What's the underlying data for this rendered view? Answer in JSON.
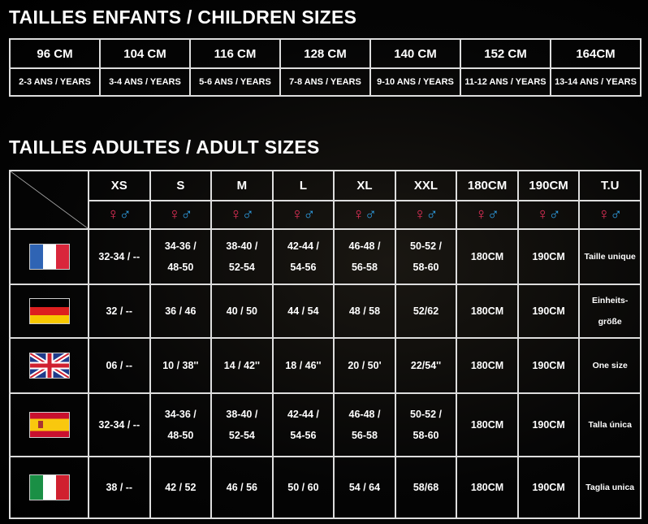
{
  "children": {
    "title": "TAILLES ENFANTS / CHILDREN SIZES",
    "sizes": [
      "96 CM",
      "104 CM",
      "116 CM",
      "128 CM",
      "140 CM",
      "152 CM",
      "164CM"
    ],
    "ages": [
      "2-3 ANS / YEARS",
      "3-4 ANS / YEARS",
      "5-6 ANS / YEARS",
      "7-8 ANS / YEARS",
      "9-10 ANS / YEARS",
      "11-12 ANS / YEARS",
      "13-14 ANS / YEARS"
    ]
  },
  "adults": {
    "title": "TAILLES ADULTES / ADULT SIZES",
    "headers": [
      "XS",
      "S",
      "M",
      "L",
      "XL",
      "XXL",
      "180CM",
      "190CM",
      "T.U"
    ],
    "symbols": {
      "female": "♀",
      "male": "♂"
    },
    "colors": {
      "female": "#e8315a",
      "male": "#2fa0e6"
    },
    "rows": [
      {
        "flag": "france-flag",
        "cells": [
          [
            "32-34 / --"
          ],
          [
            "34-36 /",
            "48-50"
          ],
          [
            "38-40 /",
            "52-54"
          ],
          [
            "42-44 /",
            "54-56"
          ],
          [
            "46-48 /",
            "56-58"
          ],
          [
            "50-52 /",
            "58-60"
          ],
          [
            "180CM"
          ],
          [
            "190CM"
          ],
          [
            "Taille unique"
          ]
        ]
      },
      {
        "flag": "germany-flag",
        "cells": [
          [
            "32 / --"
          ],
          [
            "36 / 46"
          ],
          [
            "40 / 50"
          ],
          [
            "44 / 54"
          ],
          [
            "48 / 58"
          ],
          [
            "52/62"
          ],
          [
            "180CM"
          ],
          [
            "190CM"
          ],
          [
            "Einheits-",
            "größe"
          ]
        ]
      },
      {
        "flag": "uk-flag",
        "cells": [
          [
            "06 / --"
          ],
          [
            "10 / 38''"
          ],
          [
            "14 / 42''"
          ],
          [
            "18 / 46''"
          ],
          [
            "20 / 50'"
          ],
          [
            "22/54''"
          ],
          [
            "180CM"
          ],
          [
            "190CM"
          ],
          [
            "One size"
          ]
        ]
      },
      {
        "flag": "spain-flag",
        "cells": [
          [
            "32-34 / --"
          ],
          [
            "34-36 /",
            "48-50"
          ],
          [
            "38-40 /",
            "52-54"
          ],
          [
            "42-44 /",
            "54-56"
          ],
          [
            "46-48 /",
            "56-58"
          ],
          [
            "50-52 /",
            "58-60"
          ],
          [
            "180CM"
          ],
          [
            "190CM"
          ],
          [
            "Talla única"
          ]
        ]
      },
      {
        "flag": "italy-flag",
        "cells": [
          [
            "38 / --"
          ],
          [
            "42 / 52"
          ],
          [
            "46 / 56"
          ],
          [
            "50 / 60"
          ],
          [
            "54 / 64"
          ],
          [
            "58/68"
          ],
          [
            "180CM"
          ],
          [
            "190CM"
          ],
          [
            "Taglia unica"
          ]
        ]
      }
    ]
  }
}
